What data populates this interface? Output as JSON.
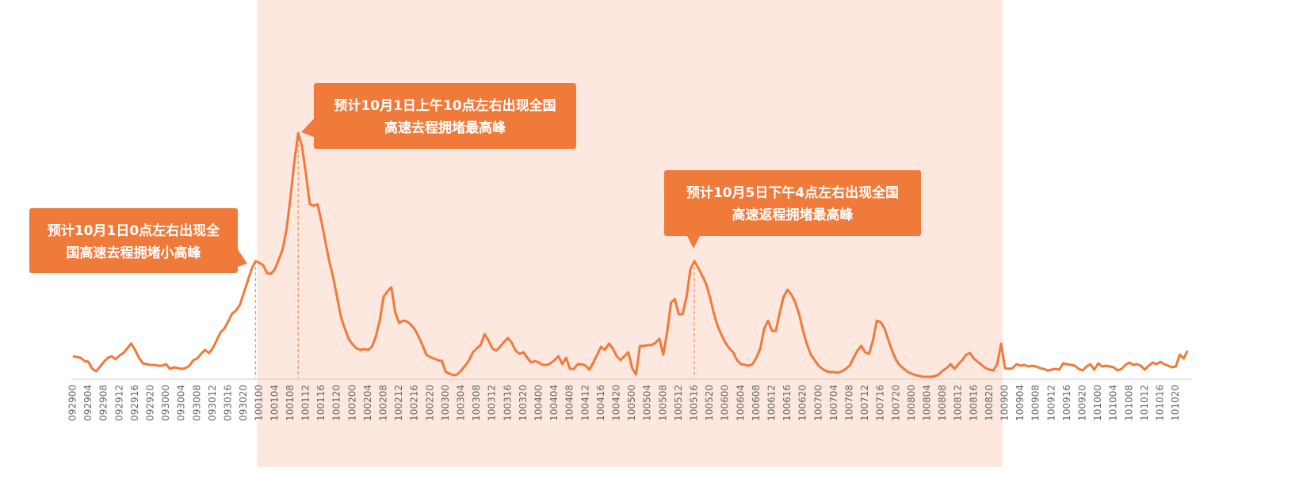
{
  "chart_data": {
    "type": "line",
    "categories": [
      "092900",
      null,
      null,
      null,
      "092904",
      null,
      null,
      null,
      "092908",
      null,
      null,
      null,
      "092912",
      null,
      null,
      null,
      "092916",
      null,
      null,
      null,
      "092920",
      null,
      null,
      null,
      "093000",
      null,
      null,
      null,
      "093004",
      null,
      null,
      null,
      "093008",
      null,
      null,
      null,
      "093012",
      null,
      null,
      null,
      "093016",
      null,
      null,
      null,
      "093020",
      null,
      null,
      null,
      "100100",
      null,
      null,
      null,
      "100104",
      null,
      null,
      null,
      "100108",
      null,
      null,
      null,
      "100112",
      null,
      null,
      null,
      "100116",
      null,
      null,
      null,
      "100120",
      null,
      null,
      null,
      "100200",
      null,
      null,
      null,
      "100204",
      null,
      null,
      null,
      "100208",
      null,
      null,
      null,
      "100212",
      null,
      null,
      null,
      "100216",
      null,
      null,
      null,
      "100220",
      null,
      null,
      null,
      "100300",
      null,
      null,
      null,
      "100304",
      null,
      null,
      null,
      "100308",
      null,
      null,
      null,
      "100312",
      null,
      null,
      null,
      "100316",
      null,
      null,
      null,
      "100320",
      null,
      null,
      null,
      "100400",
      null,
      null,
      null,
      "100404",
      null,
      null,
      null,
      "100408",
      null,
      null,
      null,
      "100412",
      null,
      null,
      null,
      "100416",
      null,
      null,
      null,
      "100420",
      null,
      null,
      null,
      "100500",
      null,
      null,
      null,
      "100504",
      null,
      null,
      null,
      "100508",
      null,
      null,
      null,
      "100512",
      null,
      null,
      null,
      "100516",
      null,
      null,
      null,
      "100520",
      null,
      null,
      null,
      "100600",
      null,
      null,
      null,
      "100604",
      null,
      null,
      null,
      "100608",
      null,
      null,
      null,
      "100612",
      null,
      null,
      null,
      "100616",
      null,
      null,
      null,
      "100620",
      null,
      null,
      null,
      "100700",
      null,
      null,
      null,
      "100704",
      null,
      null,
      null,
      "100708",
      null,
      null,
      null,
      "100712",
      null,
      null,
      null,
      "100716",
      null,
      null,
      null,
      "100720",
      null,
      null,
      null,
      "100800",
      null,
      null,
      null,
      "100804",
      null,
      null,
      null,
      "100808",
      null,
      null,
      null,
      "100812",
      null,
      null,
      null,
      "100816",
      null,
      null,
      null,
      "100820",
      null,
      null,
      null,
      "100900",
      null,
      null,
      null,
      "100904",
      null,
      null,
      null,
      "100908",
      null,
      null,
      null,
      "100912",
      null,
      null,
      null,
      "100916",
      null,
      null,
      null,
      "100920",
      null,
      null,
      null,
      "101000",
      null,
      null,
      null,
      "101004",
      null,
      null,
      null,
      "101008",
      null,
      null,
      null,
      "101012",
      null,
      null,
      null,
      "101016",
      null,
      null,
      null,
      "101020",
      null,
      null,
      null
    ],
    "values": [
      28,
      27,
      26,
      22,
      21,
      12,
      9,
      15,
      21,
      26,
      28,
      24,
      29,
      32,
      38,
      44,
      36,
      26,
      19,
      18,
      17,
      17,
      16,
      16,
      18,
      12,
      14,
      13,
      12,
      13,
      16,
      23,
      25,
      31,
      36,
      32,
      38,
      48,
      58,
      63,
      72,
      82,
      86,
      93,
      108,
      123,
      138,
      148,
      146,
      143,
      133,
      132,
      138,
      150,
      163,
      188,
      228,
      273,
      310,
      293,
      258,
      220,
      218,
      220,
      198,
      173,
      148,
      128,
      103,
      78,
      63,
      50,
      43,
      38,
      36,
      37,
      36,
      40,
      53,
      73,
      103,
      110,
      115,
      83,
      70,
      73,
      72,
      68,
      62,
      53,
      42,
      30,
      27,
      25,
      23,
      22,
      8,
      6,
      4,
      5,
      10,
      16,
      23,
      33,
      38,
      42,
      56,
      48,
      38,
      35,
      40,
      46,
      51,
      45,
      35,
      31,
      33,
      26,
      20,
      22,
      20,
      17,
      17,
      19,
      23,
      28,
      18,
      26,
      12,
      12,
      18,
      18,
      16,
      11,
      20,
      30,
      40,
      36,
      44,
      38,
      28,
      23,
      28,
      33,
      13,
      5,
      41,
      41,
      42,
      42,
      45,
      50,
      30,
      58,
      96,
      100,
      81,
      81,
      103,
      138,
      148,
      140,
      130,
      120,
      103,
      83,
      66,
      55,
      45,
      38,
      33,
      23,
      18,
      17,
      16,
      18,
      26,
      38,
      63,
      73,
      60,
      60,
      83,
      103,
      112,
      106,
      96,
      81,
      60,
      43,
      30,
      23,
      16,
      12,
      9,
      8,
      8,
      7,
      9,
      12,
      16,
      26,
      35,
      41,
      33,
      31,
      48,
      73,
      71,
      63,
      48,
      34,
      23,
      16,
      12,
      8,
      6,
      4,
      3,
      2,
      2,
      2,
      3,
      5,
      10,
      13,
      18,
      12,
      18,
      23,
      30,
      32,
      25,
      21,
      17,
      13,
      11,
      10,
      18,
      44,
      13,
      12,
      13,
      18,
      16,
      17,
      15,
      16,
      15,
      13,
      12,
      10,
      11,
      12,
      11,
      19,
      18,
      17,
      16,
      12,
      10,
      15,
      18,
      11,
      19,
      15,
      16,
      15,
      14,
      10,
      12,
      17,
      20,
      17,
      18,
      16,
      11,
      16,
      20,
      18,
      21,
      18,
      16,
      14,
      15,
      30,
      25,
      35
    ],
    "color": "#ef7a3a",
    "ylim": [
      0,
      320
    ],
    "highlight": {
      "from": "100100",
      "to": "100900",
      "color": "#fde8e0"
    },
    "annotations": [
      {
        "at": 47,
        "lines": [
          "预计10月1日0点左右出现全",
          "国高速去程拥堵小高峰"
        ]
      },
      {
        "at": 58,
        "lines": [
          "预计10月1日上午10点左右出现全国",
          "高速去程拥堵最高峰"
        ]
      },
      {
        "at": 160,
        "lines": [
          "预计10月5日下午4点左右出现全国",
          "高速返程拥堵最高峰"
        ]
      }
    ]
  }
}
